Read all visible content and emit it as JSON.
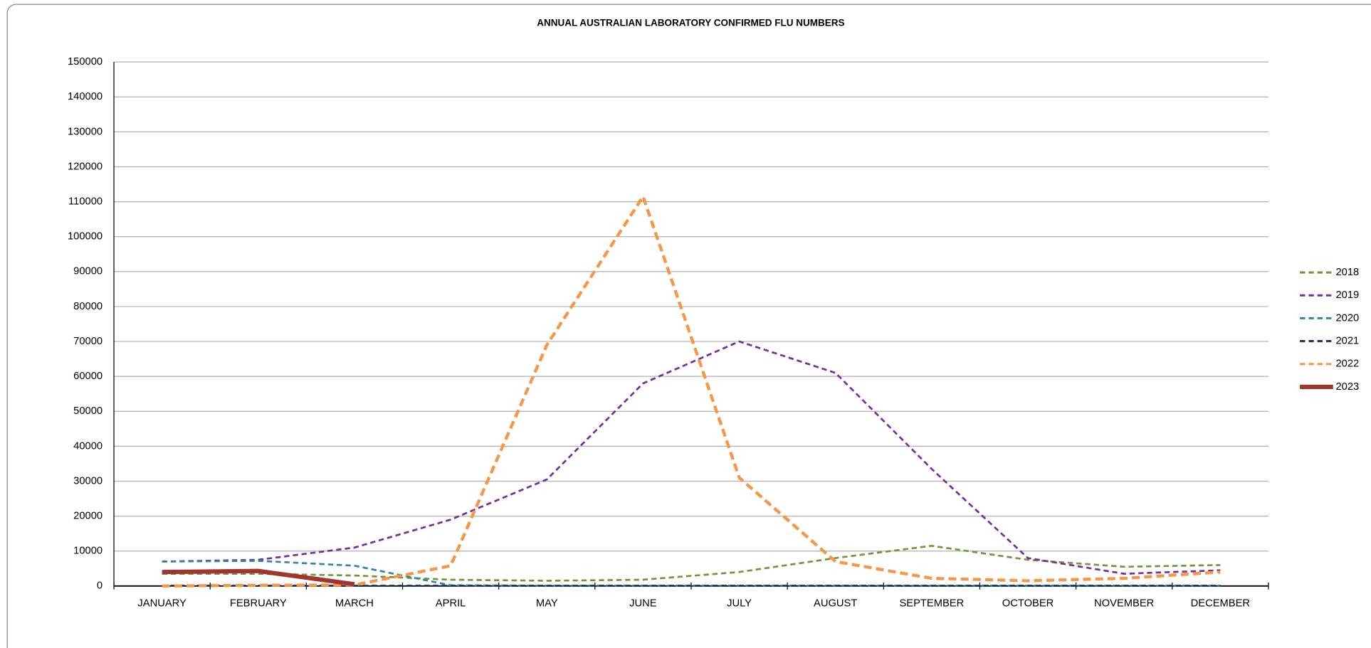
{
  "chart_data": {
    "type": "line",
    "title": "ANNUAL AUSTRALIAN LABORATORY CONFIRMED FLU NUMBERS",
    "categories": [
      "JANUARY",
      "FEBRUARY",
      "MARCH",
      "APRIL",
      "MAY",
      "JUNE",
      "JULY",
      "AUGUST",
      "SEPTEMBER",
      "OCTOBER",
      "NOVEMBER",
      "DECEMBER"
    ],
    "series": [
      {
        "name": "2018",
        "color": "#77933c",
        "line_style": "dashed",
        "values": [
          3500,
          3500,
          3000,
          1800,
          1500,
          1800,
          4000,
          8000,
          11500,
          7500,
          5500,
          6000
        ]
      },
      {
        "name": "2019",
        "color": "#7030a0",
        "line_style": "dashed",
        "values": [
          7000,
          7500,
          11000,
          19000,
          30500,
          58000,
          70000,
          61000,
          33500,
          8000,
          3500,
          4500
        ]
      },
      {
        "name": "2020",
        "color": "#31859c",
        "line_style": "dashed",
        "values": [
          7000,
          7200,
          5800,
          200,
          100,
          100,
          100,
          100,
          100,
          100,
          100,
          100
        ]
      },
      {
        "name": "2021",
        "color": "#1f3864",
        "line_style": "dashed",
        "values": [
          100,
          100,
          100,
          100,
          100,
          100,
          100,
          100,
          100,
          100,
          100,
          100
        ]
      },
      {
        "name": "2022",
        "color": "#f79646",
        "line_style": "dashed",
        "values": [
          0,
          200,
          300,
          5800,
          69000,
          111500,
          31000,
          7000,
          2200,
          1500,
          2200,
          4000
        ]
      },
      {
        "name": "2023",
        "color": "#a0362f",
        "line_style": "solid",
        "values": [
          4000,
          4300,
          500,
          null,
          null,
          null,
          null,
          null,
          null,
          null,
          null,
          null
        ]
      }
    ],
    "ylim": [
      0,
      150000
    ],
    "yticks": [
      0,
      10000,
      20000,
      30000,
      40000,
      50000,
      60000,
      70000,
      80000,
      90000,
      100000,
      110000,
      120000,
      130000,
      140000,
      150000
    ],
    "grid": true,
    "legend": "right"
  }
}
